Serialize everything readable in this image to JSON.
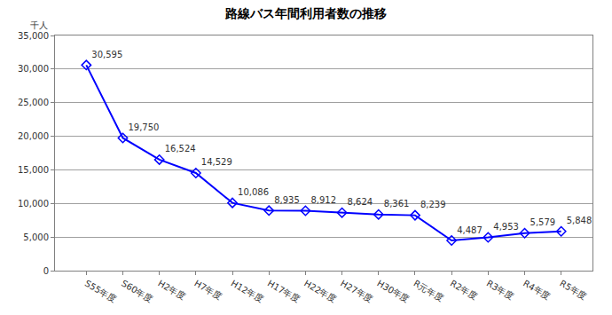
{
  "chart_data": {
    "type": "line",
    "title": "路線バス年間利用者数の推移",
    "ylabel": "千人",
    "categories": [
      "S55年度",
      "S60年度",
      "H2年度",
      "H7年度",
      "H12年度",
      "H17年度",
      "H22年度",
      "H27年度",
      "H30年度",
      "R元年度",
      "R2年度",
      "R3年度",
      "R4年度",
      "R5年度"
    ],
    "values": [
      30595,
      19750,
      16524,
      14529,
      10086,
      8935,
      8912,
      8624,
      8361,
      8239,
      4487,
      4953,
      5579,
      5848
    ],
    "value_labels": [
      "30,595",
      "19,750",
      "16,524",
      "14,529",
      "10,086",
      "8,935",
      "8,912",
      "8,624",
      "8,361",
      "8,239",
      "4,487",
      "4,953",
      "5,579",
      "5,848"
    ],
    "data_labels": true,
    "color": "#0000ff",
    "marker": "diamond-open",
    "line_style": "solid",
    "ylim": [
      0,
      35000
    ],
    "yticks": [
      0,
      {
        "value": 5000,
        "label": "5,000"
      },
      {
        "value": 10000,
        "label": "10,000"
      },
      {
        "value": 15000,
        "label": "15,000"
      },
      {
        "value": 20000,
        "label": "20,000"
      },
      {
        "value": 25000,
        "label": "25,000"
      },
      {
        "value": 30000,
        "label": "30,000"
      },
      {
        "value": 35000,
        "label": "35,000"
      }
    ],
    "grid": true
  }
}
